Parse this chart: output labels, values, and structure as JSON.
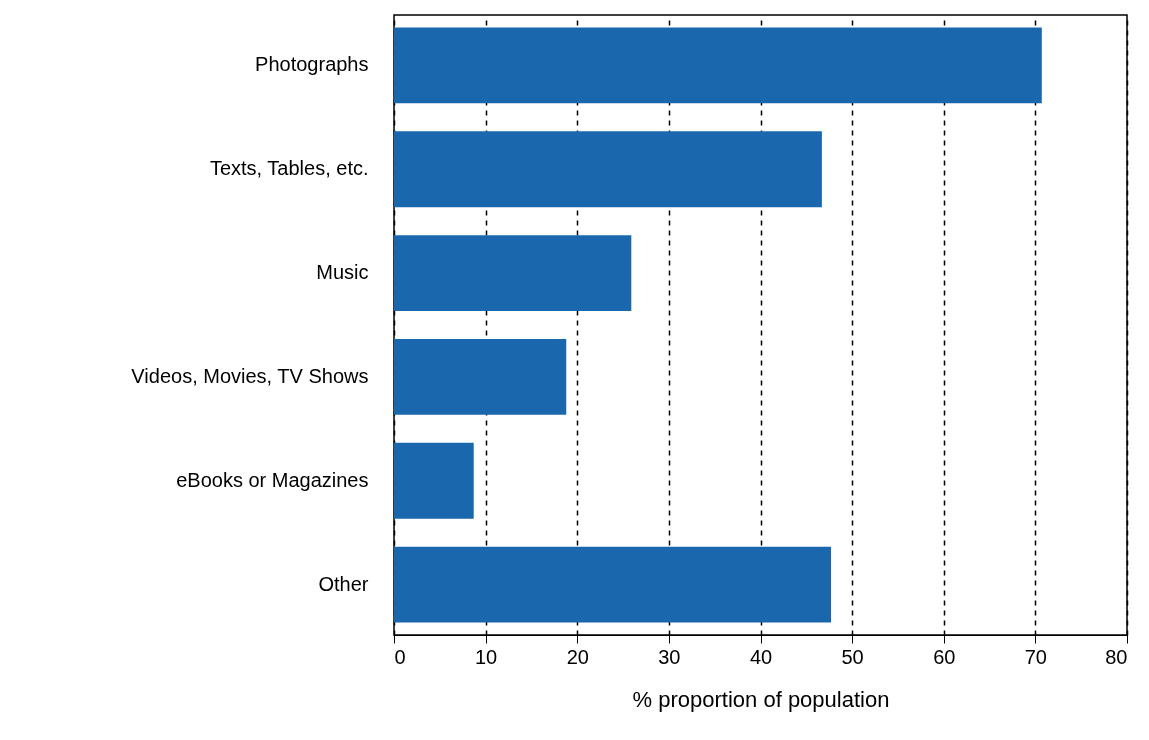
{
  "chart_data": {
    "type": "bar",
    "orientation": "horizontal",
    "xlabel": "% proportion of population",
    "categories": [
      "Photographs",
      "Texts, Tables, etc.",
      "Music",
      "Videos, Movies, TV Shows",
      "eBooks or Magazines",
      "Other"
    ],
    "values": [
      70.7,
      46.7,
      25.9,
      18.8,
      8.7,
      47.7
    ],
    "color": "#1a67ad",
    "xlim": [
      0,
      80
    ],
    "xticks": [
      0,
      10,
      20,
      30,
      40,
      50,
      60,
      70,
      80
    ],
    "grid": "x"
  }
}
